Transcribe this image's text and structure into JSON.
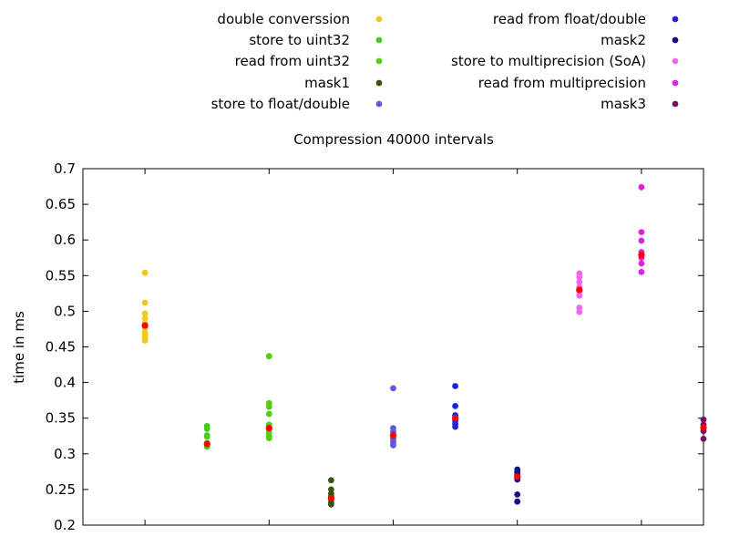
{
  "chart_data": {
    "type": "scatter",
    "title": "Compression 40000 intervals",
    "ylabel": "time in ms",
    "xlabel": "",
    "ylim": [
      0.2,
      0.7
    ],
    "xlim": [
      0,
      10
    ],
    "y_ticks": [
      "0.2",
      "0.25",
      "0.3",
      "0.35",
      "0.4",
      "0.45",
      "0.5",
      "0.55",
      "0.6",
      "0.65",
      "0.7"
    ],
    "x_tick_positions": [
      1,
      3,
      5,
      7,
      9
    ],
    "grid": false,
    "legend_placement": "top, two columns",
    "mean_color": "#ff0000",
    "series": [
      {
        "name": "double converssion",
        "color": "#f0c820",
        "x": 1,
        "values": [
          0.554,
          0.512,
          0.497,
          0.49,
          0.483,
          0.476,
          0.47,
          0.466,
          0.462,
          0.459
        ],
        "mean": 0.48
      },
      {
        "name": "store to uint32",
        "color": "#44cc22",
        "x": 2,
        "values": [
          0.339,
          0.335,
          0.326,
          0.324,
          0.315,
          0.312,
          0.31
        ],
        "mean": 0.314
      },
      {
        "name": "read from uint32",
        "color": "#55cc11",
        "x": 3,
        "values": [
          0.437,
          0.371,
          0.366,
          0.356,
          0.341,
          0.335,
          0.33,
          0.325,
          0.322
        ],
        "mean": 0.336
      },
      {
        "name": "mask1",
        "color": "#335511",
        "x": 4,
        "values": [
          0.263,
          0.25,
          0.244,
          0.24,
          0.236,
          0.232,
          0.229
        ],
        "mean": 0.238
      },
      {
        "name": "store to float/double",
        "color": "#6655dd",
        "x": 5,
        "values": [
          0.392,
          0.336,
          0.331,
          0.322,
          0.318,
          0.315,
          0.312
        ],
        "mean": 0.326
      },
      {
        "name": "read from float/double",
        "color": "#2222dd",
        "x": 6,
        "values": [
          0.395,
          0.367,
          0.354,
          0.346,
          0.342,
          0.338
        ],
        "mean": 0.35
      },
      {
        "name": "mask2",
        "color": "#111188",
        "x": 7,
        "values": [
          0.278,
          0.274,
          0.271,
          0.267,
          0.264,
          0.243,
          0.233
        ],
        "mean": 0.268
      },
      {
        "name": "store to multiprecision (SoA)",
        "color": "#ee66ee",
        "x": 8,
        "values": [
          0.553,
          0.548,
          0.541,
          0.534,
          0.528,
          0.522,
          0.505,
          0.499
        ],
        "mean": 0.53
      },
      {
        "name": "read from multiprecision",
        "color": "#dd22dd",
        "x": 9,
        "values": [
          0.674,
          0.611,
          0.599,
          0.583,
          0.575,
          0.567,
          0.555
        ],
        "mean": 0.579
      },
      {
        "name": "mask3",
        "color": "#771166",
        "x": 10,
        "values": [
          0.348,
          0.341,
          0.336,
          0.332,
          0.321
        ],
        "mean": 0.337
      }
    ]
  }
}
